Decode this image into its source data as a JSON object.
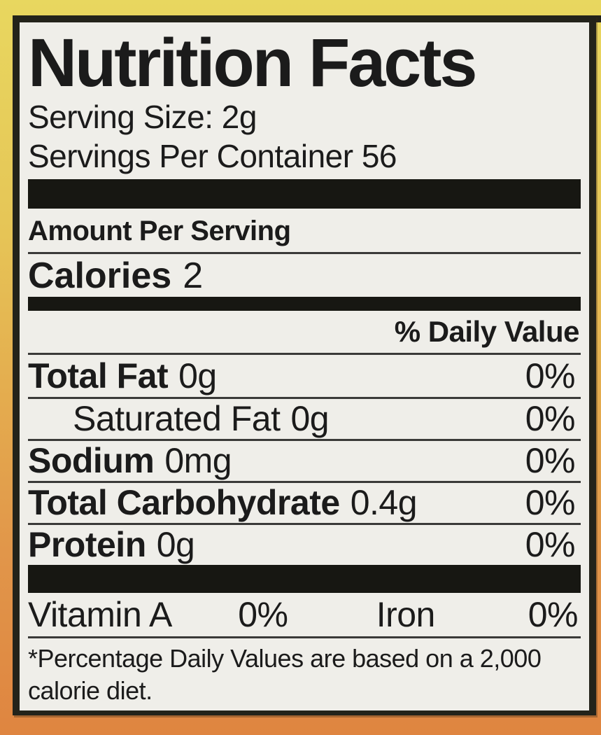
{
  "colors": {
    "bg_top": "#e8d75f",
    "bg_mid": "#e4ab4e",
    "bg_bottom": "#df8540",
    "label_bg": "#efeee9",
    "border_color": "#23231a",
    "text_color": "#1b1b1b"
  },
  "label": {
    "title": "Nutrition Facts",
    "serving_size": "Serving Size: 2g",
    "servings_per_container": "Servings Per Container 56",
    "amount_per_serving": "Amount Per Serving",
    "calories_label": "Calories",
    "calories_value": "2",
    "daily_value_header": "% Daily Value",
    "rows": [
      {
        "name": "Total Fat",
        "amount": "0g",
        "dv": "0%"
      },
      {
        "name": "Saturated Fat",
        "amount": "0g",
        "dv": "0%"
      },
      {
        "name": "Sodium",
        "amount": "0mg",
        "dv": "0%"
      },
      {
        "name": "Total Carbohydrate",
        "amount": "0.4g",
        "dv": "0%"
      },
      {
        "name": "Protein",
        "amount": "0g",
        "dv": "0%"
      }
    ],
    "micronutrients": [
      {
        "name": "Vitamin A",
        "value": "0%"
      },
      {
        "name": "Iron",
        "value": "0%"
      }
    ],
    "footnote_lines": [
      "*Percentage Daily Values are based on a 2,000",
      "calorie diet."
    ]
  }
}
